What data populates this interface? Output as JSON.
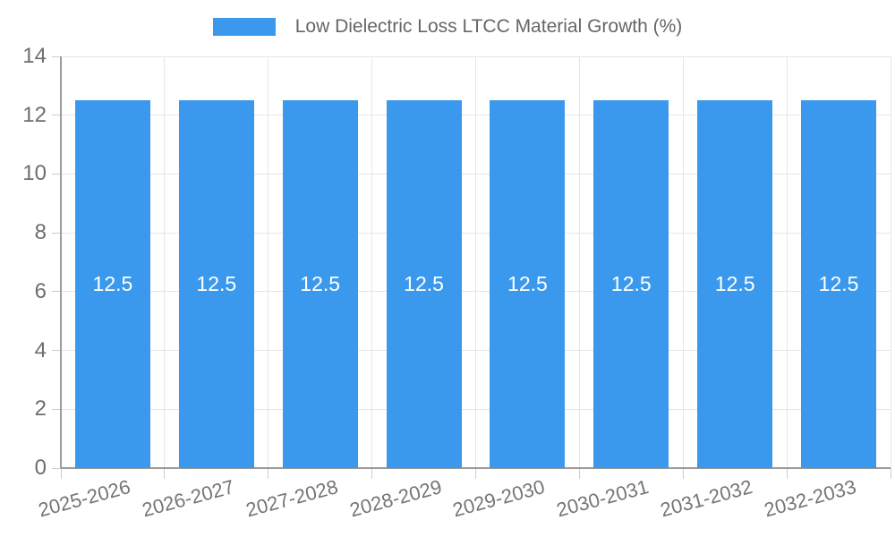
{
  "legend": {
    "label": "Low Dielectric Loss LTCC Material Growth (%)"
  },
  "chart_data": {
    "type": "bar",
    "title": "",
    "categories": [
      "2025-2026",
      "2026-2027",
      "2027-2028",
      "2028-2029",
      "2029-2030",
      "2030-2031",
      "2031-2032",
      "2032-2033"
    ],
    "series": [
      {
        "name": "Low Dielectric Loss LTCC Material Growth (%)",
        "values": [
          12.5,
          12.5,
          12.5,
          12.5,
          12.5,
          12.5,
          12.5,
          12.5
        ]
      }
    ],
    "value_labels": [
      "12.5",
      "12.5",
      "12.5",
      "12.5",
      "12.5",
      "12.5",
      "12.5",
      "12.5"
    ],
    "xlabel": "",
    "ylabel": "",
    "ylim": [
      0,
      14
    ],
    "yticks": [
      0,
      2,
      4,
      6,
      8,
      10,
      12,
      14
    ],
    "grid": true,
    "legend_position": "top-center",
    "colors": {
      "bar": "#3B99ED",
      "value_label": "#ffffff",
      "gridline": "#e6e6e6",
      "axis_line": "#9a9a9a",
      "tick_mark": "#cccccc",
      "axis_text": "#6e6e6e",
      "legend_text": "#666666"
    }
  }
}
